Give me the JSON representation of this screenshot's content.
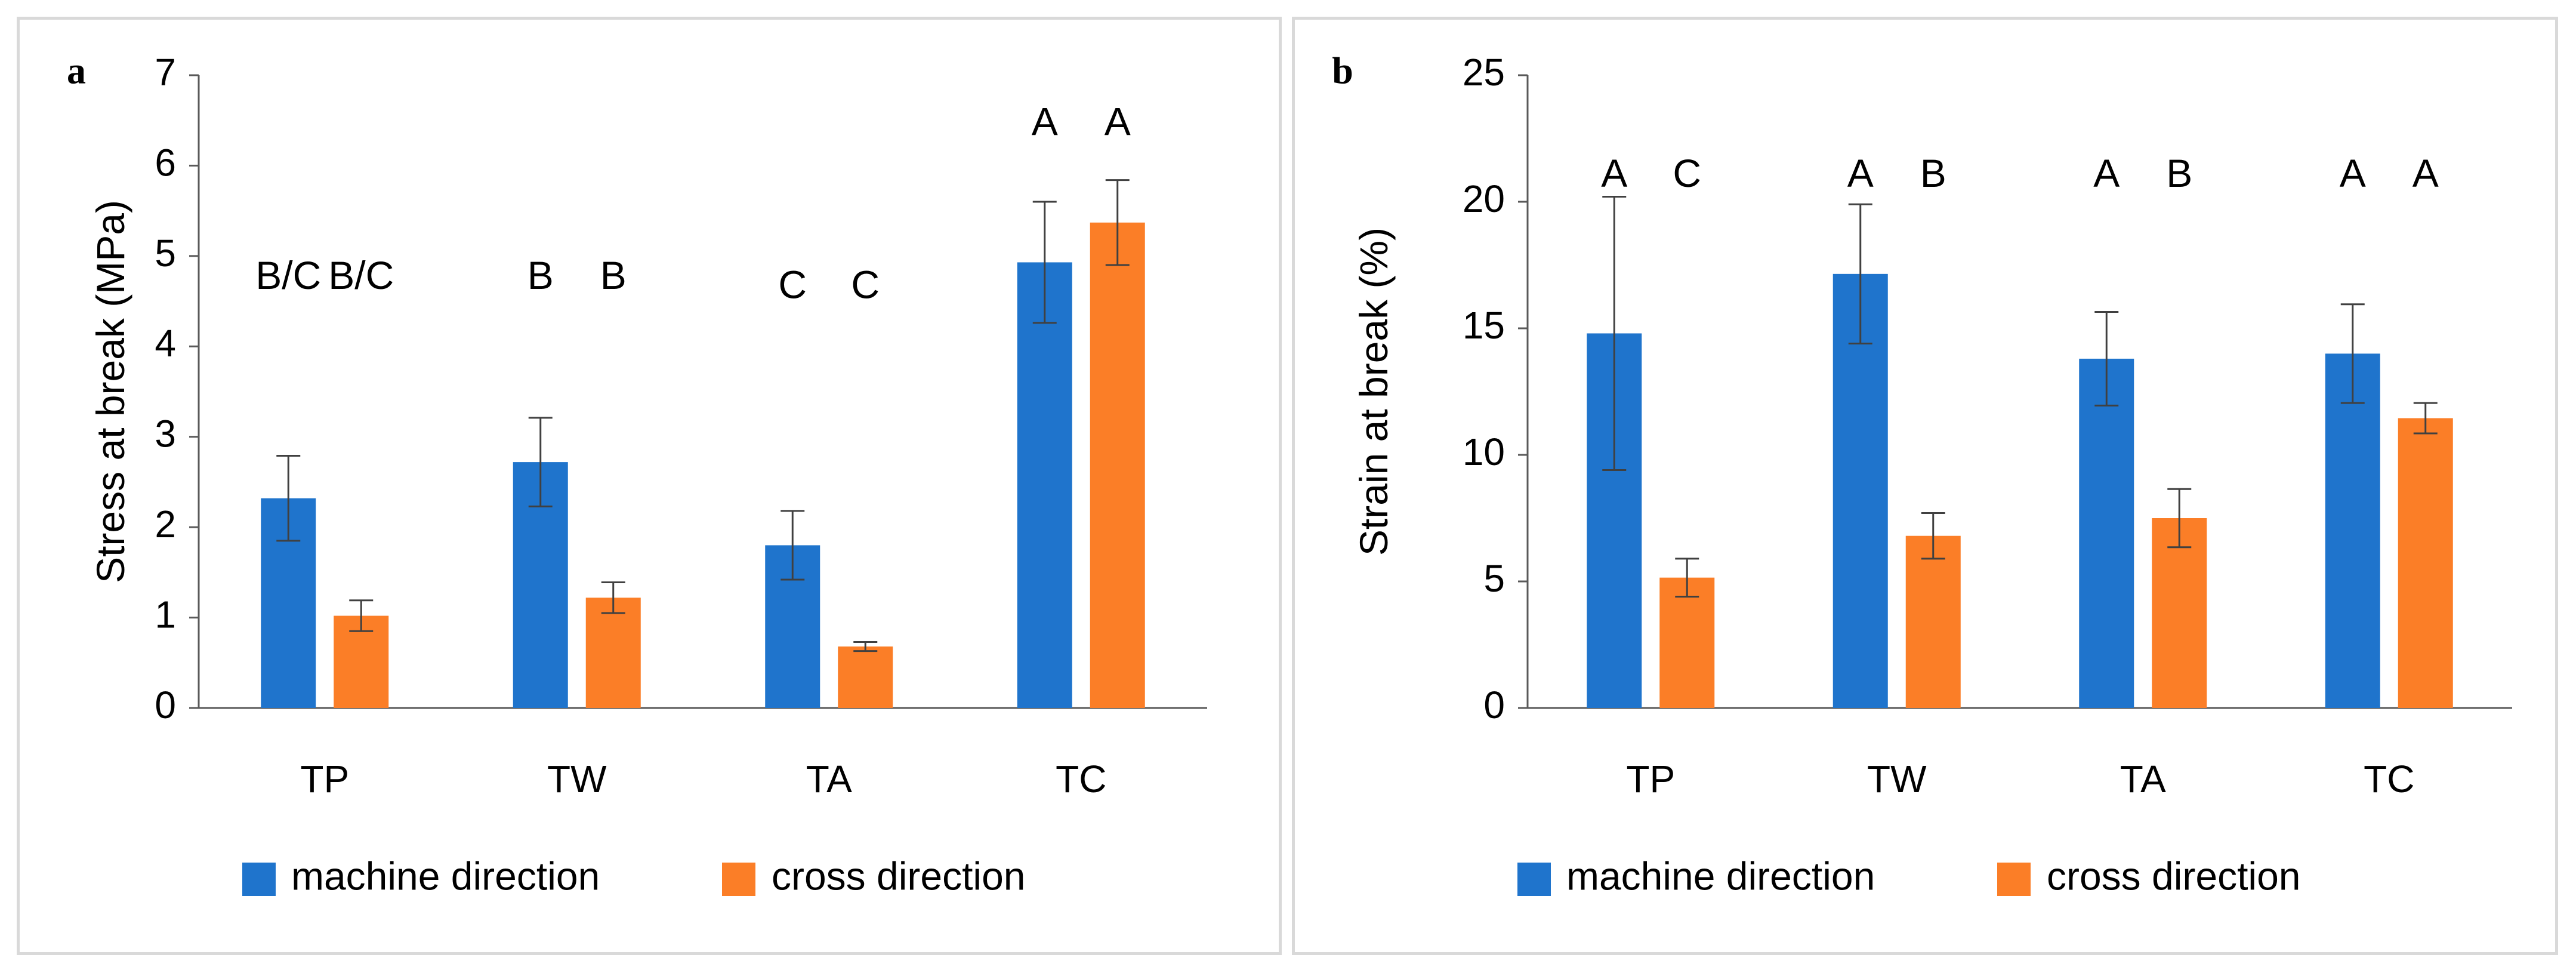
{
  "colors": {
    "machine": "#1f74cc",
    "cross": "#fb7e27",
    "axis": "#595959",
    "error": "#404040"
  },
  "chart_data": [
    {
      "panel": "a",
      "type": "bar",
      "title": "",
      "xlabel": "",
      "ylabel": "Stress at break (MPa)",
      "ylim": [
        0,
        7
      ],
      "yticks": [
        0,
        1,
        2,
        3,
        4,
        5,
        6,
        7
      ],
      "categories": [
        "TP",
        "TW",
        "TA",
        "TC"
      ],
      "series": [
        {
          "name": "machine direction",
          "values": [
            2.32,
            2.72,
            1.8,
            4.93
          ],
          "errors": [
            0.47,
            0.49,
            0.38,
            0.67
          ],
          "letters": [
            "B/C",
            "B",
            "C",
            "A"
          ]
        },
        {
          "name": "cross direction",
          "values": [
            1.02,
            1.22,
            0.68,
            5.37
          ],
          "errors": [
            0.17,
            0.17,
            0.05,
            0.47
          ],
          "letters": [
            "B/C",
            "B",
            "C",
            "A"
          ]
        }
      ],
      "letter_y": [
        4.75,
        4.75,
        4.65,
        6.45
      ],
      "legend": "bottom"
    },
    {
      "panel": "b",
      "type": "bar",
      "title": "",
      "xlabel": "",
      "ylabel": "Strain at break (%)",
      "ylim": [
        0,
        25
      ],
      "yticks": [
        0,
        5,
        10,
        15,
        20,
        25
      ],
      "categories": [
        "TP",
        "TW",
        "TA",
        "TC"
      ],
      "series": [
        {
          "name": "machine direction",
          "values": [
            14.8,
            17.15,
            13.8,
            14.0
          ],
          "errors": [
            5.4,
            2.75,
            1.85,
            1.95
          ],
          "letters": [
            "A",
            "A",
            "A",
            "A"
          ]
        },
        {
          "name": "cross direction",
          "values": [
            5.15,
            6.8,
            7.5,
            11.45
          ],
          "errors": [
            0.75,
            0.9,
            1.15,
            0.6
          ],
          "letters": [
            "C",
            "B",
            "B",
            "A"
          ]
        }
      ],
      "letter_y": [
        21.0,
        21.0,
        21.0,
        21.0
      ],
      "legend": "bottom"
    }
  ]
}
